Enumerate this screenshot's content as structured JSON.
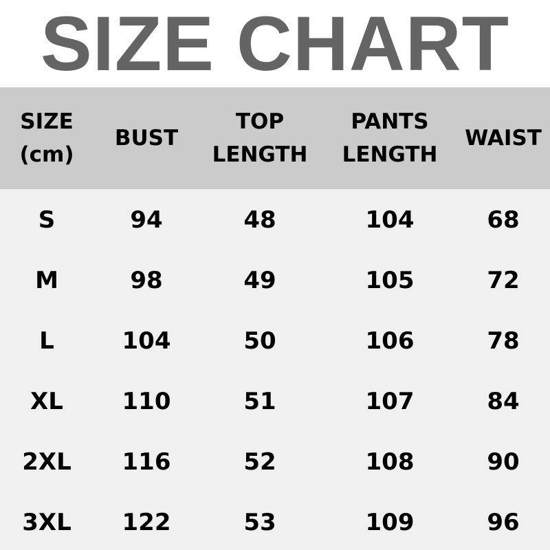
{
  "title": "SIZE CHART",
  "table": {
    "headers": [
      [
        "SIZE",
        "(cm)"
      ],
      [
        "BUST"
      ],
      [
        "TOP",
        "LENGTH"
      ],
      [
        "PANTS",
        "LENGTH"
      ],
      [
        "WAIST"
      ]
    ],
    "rows": [
      [
        "S",
        "94",
        "48",
        "104",
        "68"
      ],
      [
        "M",
        "98",
        "49",
        "105",
        "72"
      ],
      [
        "L",
        "104",
        "50",
        "106",
        "78"
      ],
      [
        "XL",
        "110",
        "51",
        "107",
        "84"
      ],
      [
        "2XL",
        "116",
        "52",
        "108",
        "90"
      ],
      [
        "3XL",
        "122",
        "53",
        "109",
        "96"
      ]
    ]
  },
  "colors": {
    "title": "#646464",
    "header_bg": "#cbcbcb",
    "body_bg": "#f0f0f0"
  }
}
